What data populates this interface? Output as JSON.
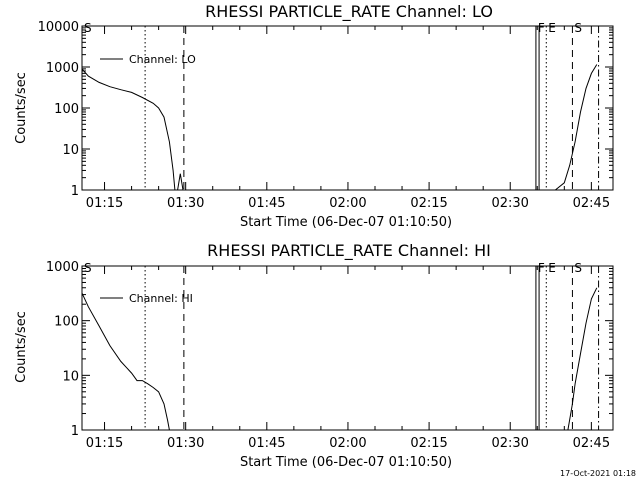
{
  "chart_data": [
    {
      "type": "line",
      "title": "RHESSI PARTICLE_RATE Channel: LO",
      "xlabel": "Start Time (06-Dec-07 01:10:50)",
      "ylabel": "Counts/sec",
      "yscale": "log",
      "ylim": [
        1,
        10000
      ],
      "xlim": [
        "01:10:50",
        "02:49:00"
      ],
      "x_ticks": [
        "01:15",
        "01:30",
        "01:45",
        "02:00",
        "02:15",
        "02:30",
        "02:45"
      ],
      "y_ticks": [
        "1",
        "10",
        "100",
        "1000",
        "10000"
      ],
      "legend": "top-left",
      "series": [
        {
          "name": "Channel: LO",
          "x": [
            "01:10:50",
            "01:12:00",
            "01:14:00",
            "01:16:00",
            "01:18:00",
            "01:20:00",
            "01:22:00",
            "01:24:00",
            "01:25:00",
            "01:26:00",
            "01:27:00",
            "01:27:40",
            "01:28:00",
            "01:28:30",
            "01:29:00",
            "01:29:30",
            "02:38:20",
            "02:40:00",
            "02:41:00",
            "02:42:00",
            "02:43:00",
            "02:44:00",
            "02:45:00",
            "02:46:00"
          ],
          "y": [
            900,
            600,
            420,
            330,
            280,
            240,
            180,
            130,
            100,
            60,
            15,
            3,
            1,
            1,
            2.5,
            1,
            1,
            1.5,
            4,
            15,
            80,
            300,
            700,
            1150
          ]
        }
      ],
      "markers": [
        {
          "label": "S",
          "time": "01:10:50",
          "style": "dash-dot"
        },
        {
          "label": "",
          "time": "01:22:30",
          "style": "dotted"
        },
        {
          "label": "",
          "time": "01:29:40",
          "style": "dashed"
        },
        {
          "label": "F",
          "time": "02:34:45",
          "style": "solid"
        },
        {
          "label": "",
          "time": "02:35:20",
          "style": "solid"
        },
        {
          "label": "E",
          "time": "02:36:40",
          "style": "dotted"
        },
        {
          "label": "S",
          "time": "02:41:30",
          "style": "dashed"
        },
        {
          "label": "",
          "time": "02:46:20",
          "style": "dash-dot"
        }
      ]
    },
    {
      "type": "line",
      "title": "RHESSI PARTICLE_RATE Channel: HI",
      "xlabel": "Start Time (06-Dec-07 01:10:50)",
      "ylabel": "Counts/sec",
      "yscale": "log",
      "ylim": [
        1,
        1000
      ],
      "xlim": [
        "01:10:50",
        "02:49:00"
      ],
      "x_ticks": [
        "01:15",
        "01:30",
        "01:45",
        "02:00",
        "02:15",
        "02:30",
        "02:45"
      ],
      "y_ticks": [
        "1",
        "10",
        "100",
        "1000"
      ],
      "legend": "top-left",
      "series": [
        {
          "name": "Channel: HI",
          "x": [
            "01:10:50",
            "01:12:00",
            "01:14:00",
            "01:16:00",
            "01:18:00",
            "01:20:00",
            "01:21:00",
            "01:22:00",
            "01:23:00",
            "01:24:00",
            "01:25:00",
            "01:26:00",
            "01:26:40",
            "01:27:00",
            "02:40:40",
            "02:41:30",
            "02:42:00",
            "02:43:00",
            "02:44:00",
            "02:45:00",
            "02:46:00"
          ],
          "y": [
            320,
            180,
            80,
            35,
            18,
            11,
            8,
            8,
            7,
            6,
            5,
            3,
            1.5,
            1,
            1,
            3,
            7,
            25,
            90,
            250,
            400
          ]
        }
      ],
      "markers": [
        {
          "label": "S",
          "time": "01:10:50",
          "style": "dash-dot"
        },
        {
          "label": "",
          "time": "01:22:30",
          "style": "dotted"
        },
        {
          "label": "",
          "time": "01:29:40",
          "style": "dashed"
        },
        {
          "label": "F",
          "time": "02:34:45",
          "style": "solid"
        },
        {
          "label": "",
          "time": "02:35:20",
          "style": "solid"
        },
        {
          "label": "E",
          "time": "02:36:40",
          "style": "dotted"
        },
        {
          "label": "S",
          "time": "02:41:30",
          "style": "dashed"
        },
        {
          "label": "",
          "time": "02:46:20",
          "style": "dash-dot"
        }
      ]
    }
  ],
  "footer": {
    "stamp": "17-Oct-2021 01:18"
  }
}
